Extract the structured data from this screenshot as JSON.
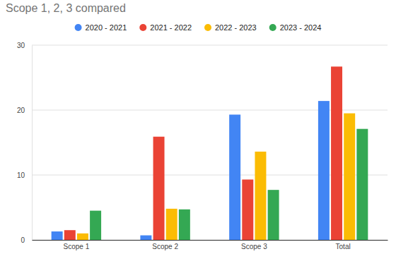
{
  "chart_data": {
    "type": "bar",
    "title": "Scope 1, 2, 3 compared",
    "categories": [
      "Scope 1",
      "Scope 2",
      "Scope 3",
      "Total"
    ],
    "series": [
      {
        "name": "2020 - 2021",
        "color": "#4285f4",
        "values": [
          1.3,
          0.7,
          19.3,
          21.4
        ]
      },
      {
        "name": "2021 - 2022",
        "color": "#ea4335",
        "values": [
          1.5,
          15.9,
          9.3,
          26.7
        ]
      },
      {
        "name": "2022 - 2023",
        "color": "#fbbc04",
        "values": [
          1.0,
          4.8,
          13.6,
          19.5
        ]
      },
      {
        "name": "2023 - 2024",
        "color": "#34a853",
        "values": [
          4.5,
          4.7,
          7.7,
          17.1
        ]
      }
    ],
    "ylim": [
      0,
      30
    ],
    "yticks": [
      0,
      10,
      20,
      30
    ],
    "grid": true,
    "legend": "top"
  }
}
